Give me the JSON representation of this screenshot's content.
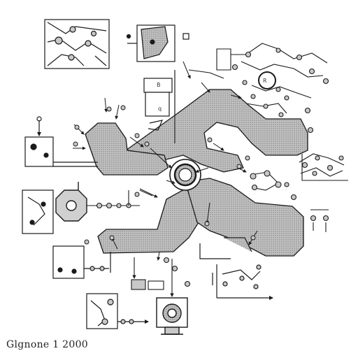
{
  "caption": "Glgnone 1 2000",
  "labels": {
    "inset_b": "B",
    "inset_q": "q",
    "hub_label": "R"
  },
  "colors": {
    "ink": "#1a1a1a",
    "shape_fill": "#b9b9b9",
    "stipple": "#8a8a8a",
    "node_fill": "#c8c8c8",
    "background": "#ffffff"
  },
  "icons": [
    "central-hub-icon",
    "gear-octagon-icon",
    "motor-icon",
    "circuit-icon"
  ]
}
